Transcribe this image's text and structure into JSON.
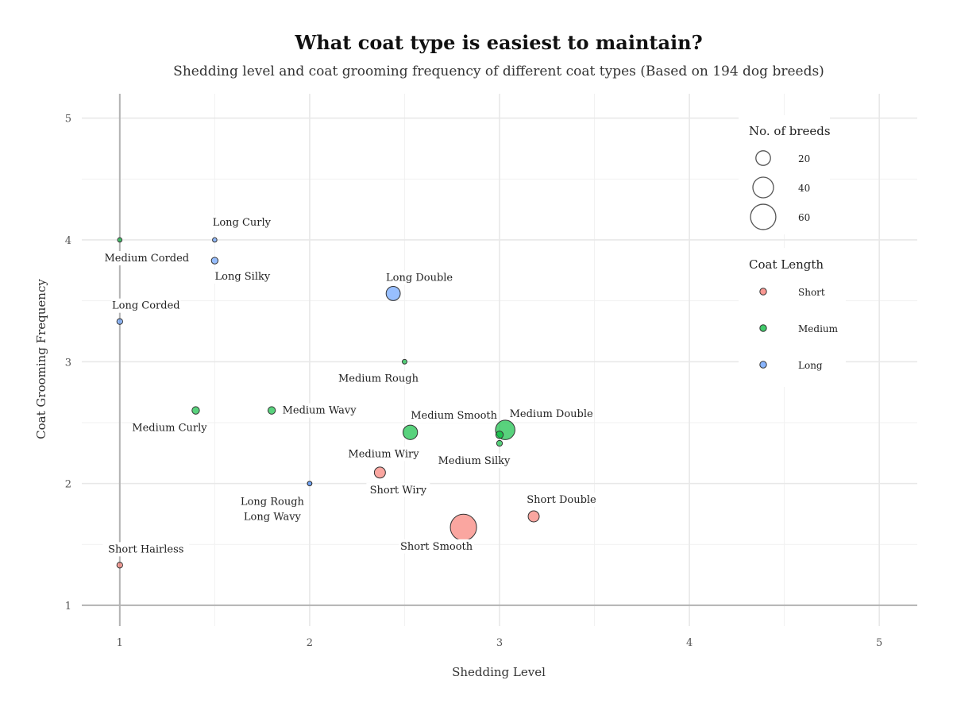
{
  "chart_data": {
    "type": "scatter",
    "title": "What coat type is easiest to maintain?",
    "subtitle": "Shedding level and coat grooming frequency of different coat types (Based on 194 dog breeds)",
    "xlabel": "Shedding Level",
    "ylabel": "Coat Grooming Frequency",
    "xlim": [
      0.8,
      5.2
    ],
    "ylim": [
      0.83,
      5.2
    ],
    "x_ticks": [
      "1",
      "2",
      "3",
      "4",
      "5"
    ],
    "y_ticks": [
      "1",
      "2",
      "3",
      "4",
      "5"
    ],
    "grid": true,
    "colors": {
      "Short": "#F8766D",
      "Medium": "#00BA38",
      "Long": "#619CFF"
    },
    "points": [
      {
        "label": "Long Curly",
        "length": "Long",
        "x": 1.5,
        "y": 4.0,
        "n": 1
      },
      {
        "label": "Medium Corded",
        "length": "Medium",
        "x": 1.0,
        "y": 4.0,
        "n": 1
      },
      {
        "label": "Long Silky",
        "length": "Long",
        "x": 1.5,
        "y": 3.83,
        "n": 4
      },
      {
        "label": "Long Double",
        "length": "Long",
        "x": 2.44,
        "y": 3.56,
        "n": 18
      },
      {
        "label": "Long Corded",
        "length": "Long",
        "x": 1.0,
        "y": 3.33,
        "n": 3
      },
      {
        "label": "Medium Rough",
        "length": "Medium",
        "x": 2.5,
        "y": 3.0,
        "n": 2
      },
      {
        "label": "Medium Curly",
        "length": "Medium",
        "x": 1.4,
        "y": 2.6,
        "n": 5
      },
      {
        "label": "Medium Wavy",
        "length": "Medium",
        "x": 1.8,
        "y": 2.6,
        "n": 5
      },
      {
        "label": "Medium Smooth",
        "length": "Medium",
        "x": 2.53,
        "y": 2.42,
        "n": 19
      },
      {
        "label": "Medium Double",
        "length": "Medium",
        "x": 3.03,
        "y": 2.44,
        "n": 34
      },
      {
        "label": "Medium Wiry",
        "length": "Medium",
        "x": 3.0,
        "y": 2.4,
        "n": 5
      },
      {
        "label": "Medium Silky",
        "length": "Medium",
        "x": 3.0,
        "y": 2.33,
        "n": 3
      },
      {
        "label": "Short Wiry",
        "length": "Short",
        "x": 2.37,
        "y": 2.09,
        "n": 11
      },
      {
        "label": "Long Rough",
        "length": "Long",
        "x": 2.0,
        "y": 2.0,
        "n": 1
      },
      {
        "label": "Long Wavy",
        "length": "Long",
        "x": 2.0,
        "y": 2.0,
        "n": 1
      },
      {
        "label": "Short Double",
        "length": "Short",
        "x": 3.18,
        "y": 1.73,
        "n": 11
      },
      {
        "label": "Short Smooth",
        "length": "Short",
        "x": 2.81,
        "y": 1.64,
        "n": 62
      },
      {
        "label": "Short Hairless",
        "length": "Short",
        "x": 1.0,
        "y": 1.33,
        "n": 3
      }
    ],
    "legend": {
      "size_title": "No. of breeds",
      "size_items": [
        {
          "label": "20",
          "n": 20
        },
        {
          "label": "40",
          "n": 40
        },
        {
          "label": "60",
          "n": 60
        }
      ],
      "color_title": "Coat Length",
      "color_items": [
        {
          "label": "Short"
        },
        {
          "label": "Medium"
        },
        {
          "label": "Long"
        }
      ],
      "position": "right"
    }
  }
}
